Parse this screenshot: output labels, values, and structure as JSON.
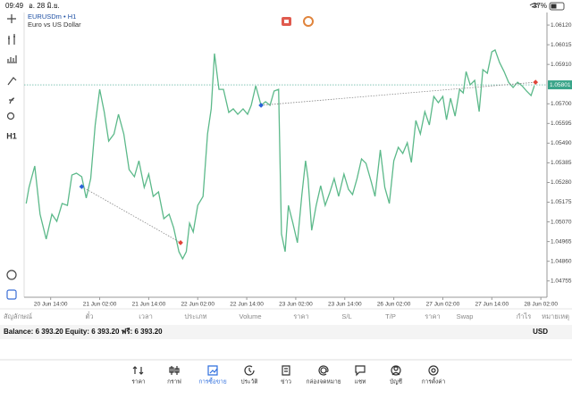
{
  "status_bar": {
    "time": "09:49",
    "date": "อ. 28 มิ.ย.",
    "battery": "37%"
  },
  "toolbar": {
    "timeframe": "H1"
  },
  "chart_data": {
    "type": "line",
    "symbol": "EURUSDm • H1",
    "description": "Euro vs US Dollar",
    "color": "#5cb98a",
    "x": [
      0,
      0.7,
      2.1,
      3.4,
      4.9,
      6.3,
      7.5,
      8.8,
      10.1,
      11.2,
      12.3,
      13.6,
      14.7,
      15.8,
      16.9,
      18,
      19.1,
      20.2,
      21.5,
      22.6,
      23.9,
      25.2,
      26.5,
      27.6,
      28.9,
      30,
      31.1,
      32.4,
      33.7,
      35,
      36.1,
      37.4,
      38.3,
      39.2,
      40,
      40.9,
      42,
      43.3,
      44.4,
      45.3,
      46.1,
      47.2,
      48.3,
      49.6,
      50.7,
      51.8,
      53.1,
      54.2,
      55.1,
      56.2,
      57.5,
      58.6,
      59.7,
      60.7,
      61.8,
      62.5,
      63.4,
      64.2,
      65.3,
      66.4,
      67.5,
      68.4,
      69,
      69.9,
      71,
      72.1,
      73.2,
      74.3,
      75.4,
      76.5,
      77.8,
      78.9,
      79.9,
      81,
      82.1,
      83.2,
      84.5,
      85.4,
      86.7,
      87.8,
      88.9,
      90,
      91.1,
      92.2,
      93.3,
      94.3,
      95.4,
      96.5,
      97.6,
      98.7,
      99.8,
      100.9,
      102,
      102.9,
      103.9,
      105,
      106.1,
      107,
      107.7,
      108.7,
      109.8,
      110.9,
      111.8,
      112.9,
      114,
      114.8,
      115.9,
      117,
      118.1,
      119.2,
      120.3,
      121.4,
      122.5,
      123.6,
      124.4
    ],
    "values": [
      1.05168,
      1.05254,
      1.05368,
      1.05111,
      1.04978,
      1.05111,
      1.05073,
      1.05168,
      1.05158,
      1.0532,
      1.0533,
      1.05311,
      1.05197,
      1.05301,
      1.05587,
      1.05777,
      1.05658,
      1.05501,
      1.05539,
      1.05644,
      1.05539,
      1.05349,
      1.05311,
      1.05396,
      1.05254,
      1.05325,
      1.05206,
      1.0523,
      1.05087,
      1.05111,
      1.05039,
      1.04911,
      1.04873,
      1.04911,
      1.05063,
      1.05016,
      1.05158,
      1.05206,
      1.05539,
      1.05673,
      1.05968,
      1.05777,
      1.05777,
      1.05654,
      1.05673,
      1.05644,
      1.05673,
      1.05644,
      1.05692,
      1.05796,
      1.05692,
      1.05711,
      1.05692,
      1.05768,
      1.05777,
      1.05006,
      1.04911,
      1.05158,
      1.05063,
      1.04959,
      1.05216,
      1.05396,
      1.05301,
      1.05025,
      1.05158,
      1.05263,
      1.05158,
      1.05225,
      1.05301,
      1.05206,
      1.05325,
      1.05244,
      1.05216,
      1.05301,
      1.05406,
      1.05382,
      1.05282,
      1.05206,
      1.05454,
      1.05254,
      1.05168,
      1.05396,
      1.05468,
      1.05435,
      1.05492,
      1.05387,
      1.05611,
      1.05539,
      1.05658,
      1.05587,
      1.05739,
      1.05706,
      1.05739,
      1.05615,
      1.0573,
      1.05634,
      1.05777,
      1.05758,
      1.05872,
      1.05801,
      1.05825,
      1.05658,
      1.05882,
      1.05863,
      1.05977,
      1.05987,
      1.0592,
      1.05872,
      1.05815,
      1.05787,
      1.05815,
      1.05796,
      1.05768,
      1.05744,
      1.05796
    ],
    "xlim": [
      -0.5,
      127.5
    ],
    "xticks": [
      {
        "value": 6,
        "label": "20 Jun 14:00"
      },
      {
        "value": 18,
        "label": "21 Jun 02:00"
      },
      {
        "value": 30,
        "label": "21 Jun 14:00"
      },
      {
        "value": 42,
        "label": "22 Jun 02:00"
      },
      {
        "value": 54,
        "label": "22 Jun 14:00"
      },
      {
        "value": 66,
        "label": "23 Jun 02:00"
      },
      {
        "value": 78,
        "label": "23 Jun 14:00"
      },
      {
        "value": 90,
        "label": "26 Jun 02:00"
      },
      {
        "value": 102,
        "label": "27 Jun 02:00"
      },
      {
        "value": 114,
        "label": "27 Jun 14:00"
      },
      {
        "value": 126,
        "label": "28 Jun 02:00"
      }
    ],
    "ylim": [
      1.04668,
      1.06187
    ],
    "yticks": [
      {
        "value": 1.0612,
        "label": "1.06120"
      },
      1.06015,
      {
        "value": 1.0591,
        "label": "1.05910"
      },
      {
        "value": 1.057,
        "label": "1.05700"
      },
      1.05595,
      {
        "value": 1.0549,
        "label": "1.05490"
      },
      1.05385,
      {
        "value": 1.0528,
        "label": "1.05280"
      },
      1.05175,
      {
        "value": 1.0507,
        "label": "1.05070"
      },
      1.04965,
      {
        "value": 1.0486,
        "label": "1.04860"
      },
      1.04755
    ],
    "current_price": 1.05801,
    "trades": [
      {
        "open_x": 13.6,
        "open_price": 1.05258,
        "close_x": 37.8,
        "close_price": 1.04959
      },
      {
        "open_x": 57.5,
        "open_price": 1.05692,
        "close_x": 124.7,
        "close_price": 1.05815
      }
    ]
  },
  "positions_table": {
    "headers": [
      "สัญลักษณ์",
      "ตั๋ว",
      "เวลา",
      "ประเภท",
      "Volume",
      "ราคา",
      "S/L",
      "T/P",
      "ราคา",
      "Swap",
      "กำไร",
      "หมายเหตุ"
    ]
  },
  "account": {
    "summary": "Balance: 6 393.20 Equity: 6 393.20 ฟรี: 6 393.20",
    "currency": "USD"
  },
  "nav": [
    "ราคา",
    "กราฟ",
    "การซื้อขาย",
    "ประวัติ",
    "ข่าว",
    "กล่องจดหมาย",
    "แชท",
    "บัญชี",
    "การตั้งค่า"
  ]
}
